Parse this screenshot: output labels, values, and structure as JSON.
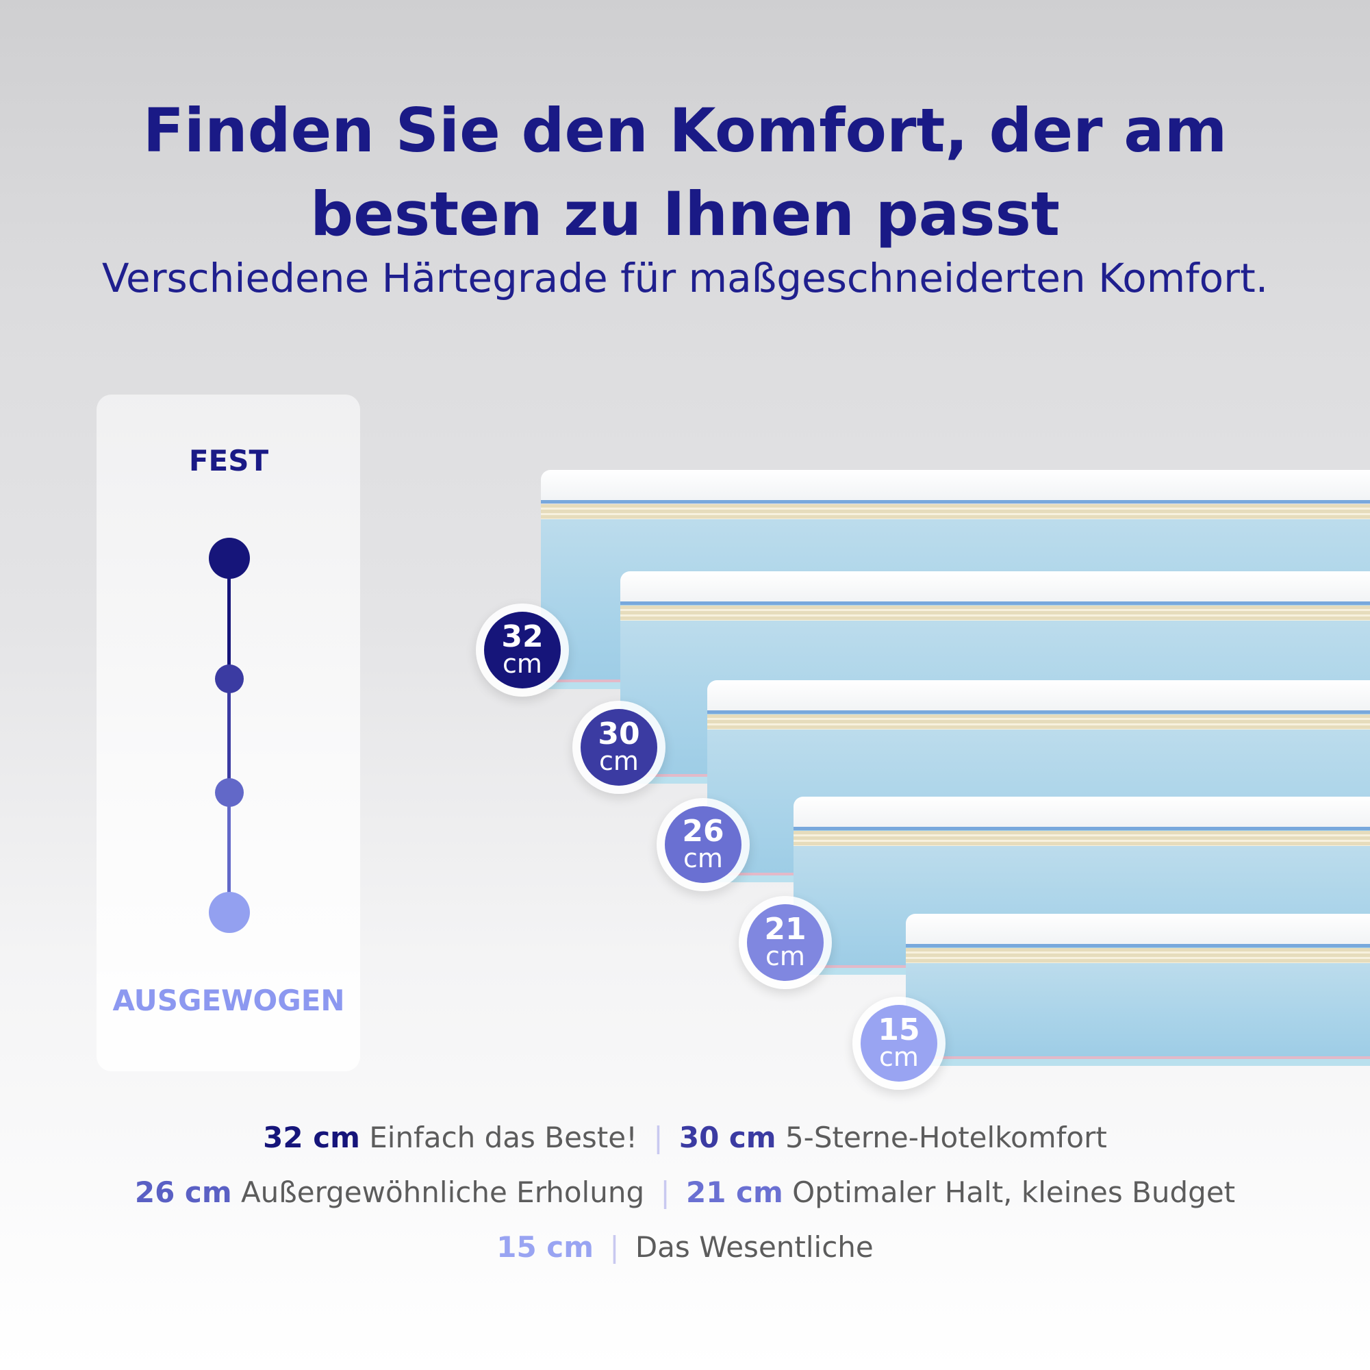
{
  "heading": {
    "line1": "Finden Sie den Komfort, der am",
    "line2": "besten zu Ihnen passt",
    "subtitle": "Verschiedene Härtegrade für maßgeschneiderten Komfort."
  },
  "firmness_scale": {
    "top_label": "FEST",
    "bottom_label": "AUSGEWOGEN",
    "colors": [
      "#16157a",
      "#3b3ba2",
      "#6268c8",
      "#93a0f0"
    ]
  },
  "mattresses": [
    {
      "size": "32",
      "unit": "cm",
      "color": "#16157a"
    },
    {
      "size": "30",
      "unit": "cm",
      "color": "#3b3ba2"
    },
    {
      "size": "26",
      "unit": "cm",
      "color": "#6a70d2"
    },
    {
      "size": "21",
      "unit": "cm",
      "color": "#8087e0"
    },
    {
      "size": "15",
      "unit": "cm",
      "color": "#99a4f2"
    }
  ],
  "descriptions": [
    {
      "size": "32 cm",
      "text": "Einfach das Beste!",
      "color": "#16157a"
    },
    {
      "size": "30 cm",
      "text": "5-Sterne-Hotelkomfort",
      "color": "#3b3ba2"
    },
    {
      "size": "26 cm",
      "text": "Außergewöhnliche Erholung",
      "color": "#5a60c4"
    },
    {
      "size": "21 cm",
      "text": "Optimaler Halt, kleines Budget",
      "color": "#6a70d2"
    },
    {
      "size": "15 cm",
      "text": "Das Wesentliche",
      "color": "#99a4f2"
    }
  ],
  "separator": "|"
}
